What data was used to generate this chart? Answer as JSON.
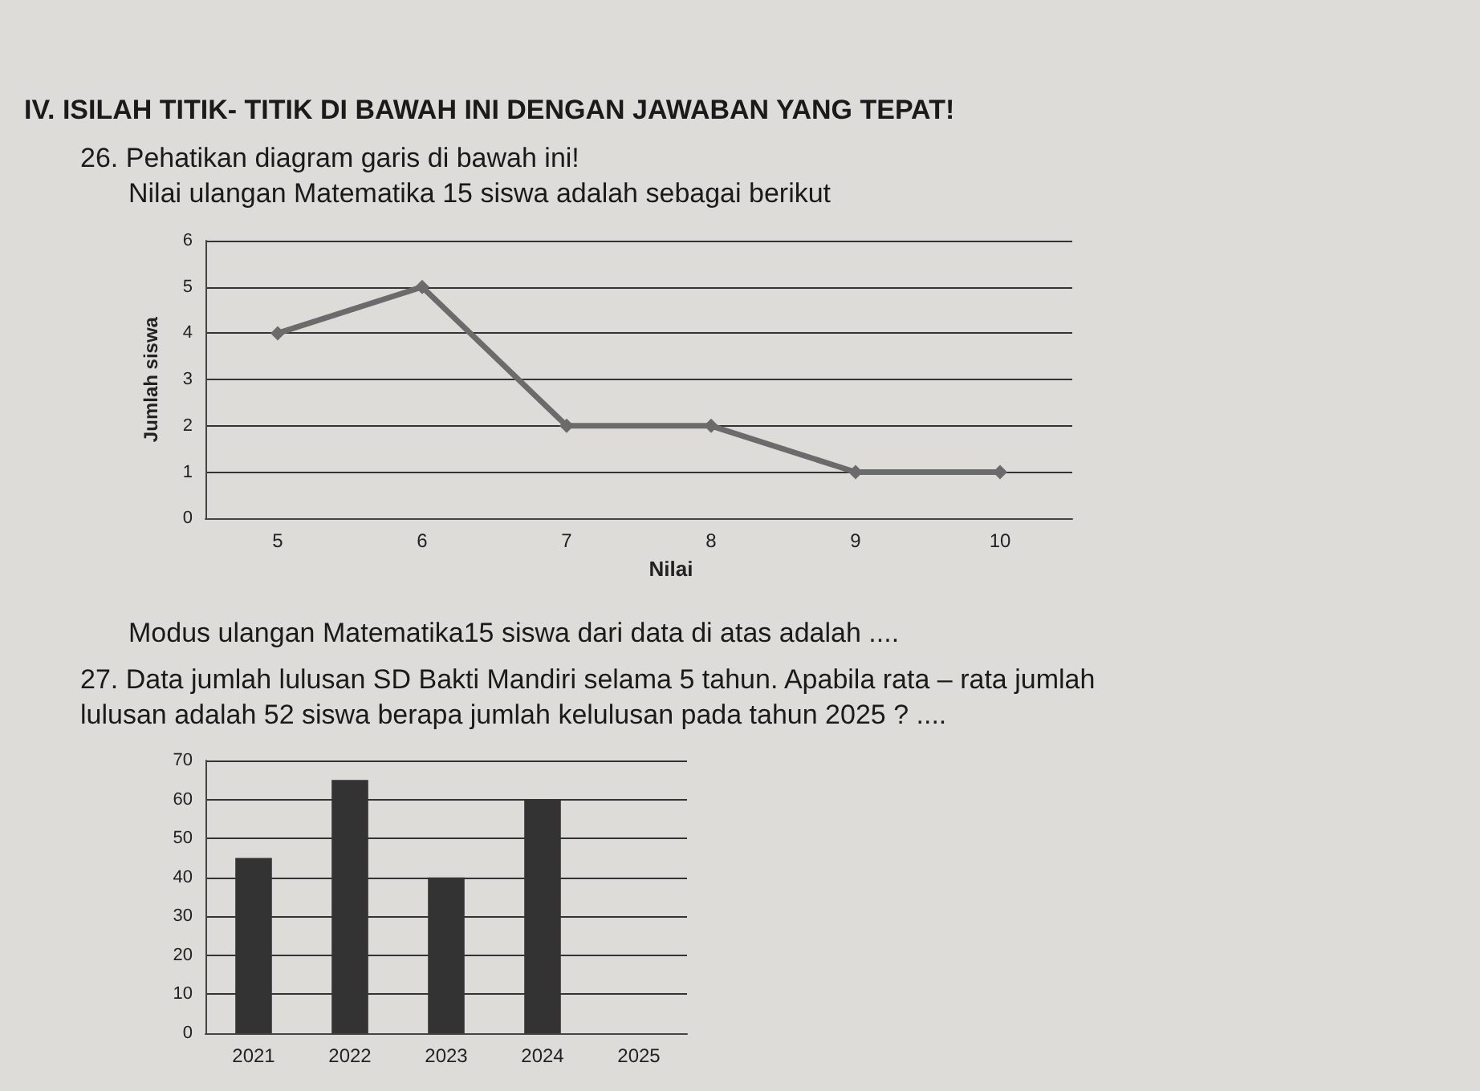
{
  "chart_data": [
    {
      "type": "line",
      "title": "26. Pehatikan diagram garis di bawah ini!",
      "subtitle": "Nilai ulangan Matematika 15 siswa adalah sebagai berikut",
      "xlabel": "Nilai",
      "ylabel": "Jumlah siswa",
      "annotations": [
        "IV. ISILAH TITIK- TITIK DI BAWAH INI DENGAN JAWABAN YANG TEPAT!",
        "Modus ulangan Matematika15 siswa dari data di atas adalah ...."
      ],
      "categories": [
        "5",
        "6",
        "7",
        "8",
        "9",
        "10"
      ],
      "series": [
        {
          "color": "#6b6b6b",
          "values": [
            4,
            5,
            2,
            2,
            1,
            1
          ]
        }
      ],
      "ylim": [
        0,
        6
      ],
      "yticks": [
        0,
        1,
        2,
        3,
        4,
        5,
        6
      ],
      "grid": "y",
      "marker": "diamond",
      "line_style": "solid"
    },
    {
      "type": "bar",
      "title": "27. Data jumlah lulusan SD Bakti Mandiri selama 5 tahun. Apabila rata – rata jumlah lulusan adalah 52 siswa berapa jumlah kelulusan pada tahun 2025 ? ....",
      "categories": [
        "2021",
        "2022",
        "2023",
        "2024",
        "2025"
      ],
      "series": [
        {
          "color": "#333333",
          "values": [
            45,
            65,
            40,
            60,
            null
          ]
        }
      ],
      "ylim": [
        0,
        70
      ],
      "yticks": [
        0,
        10,
        20,
        30,
        40,
        50,
        60,
        70
      ],
      "grid": "y"
    }
  ]
}
